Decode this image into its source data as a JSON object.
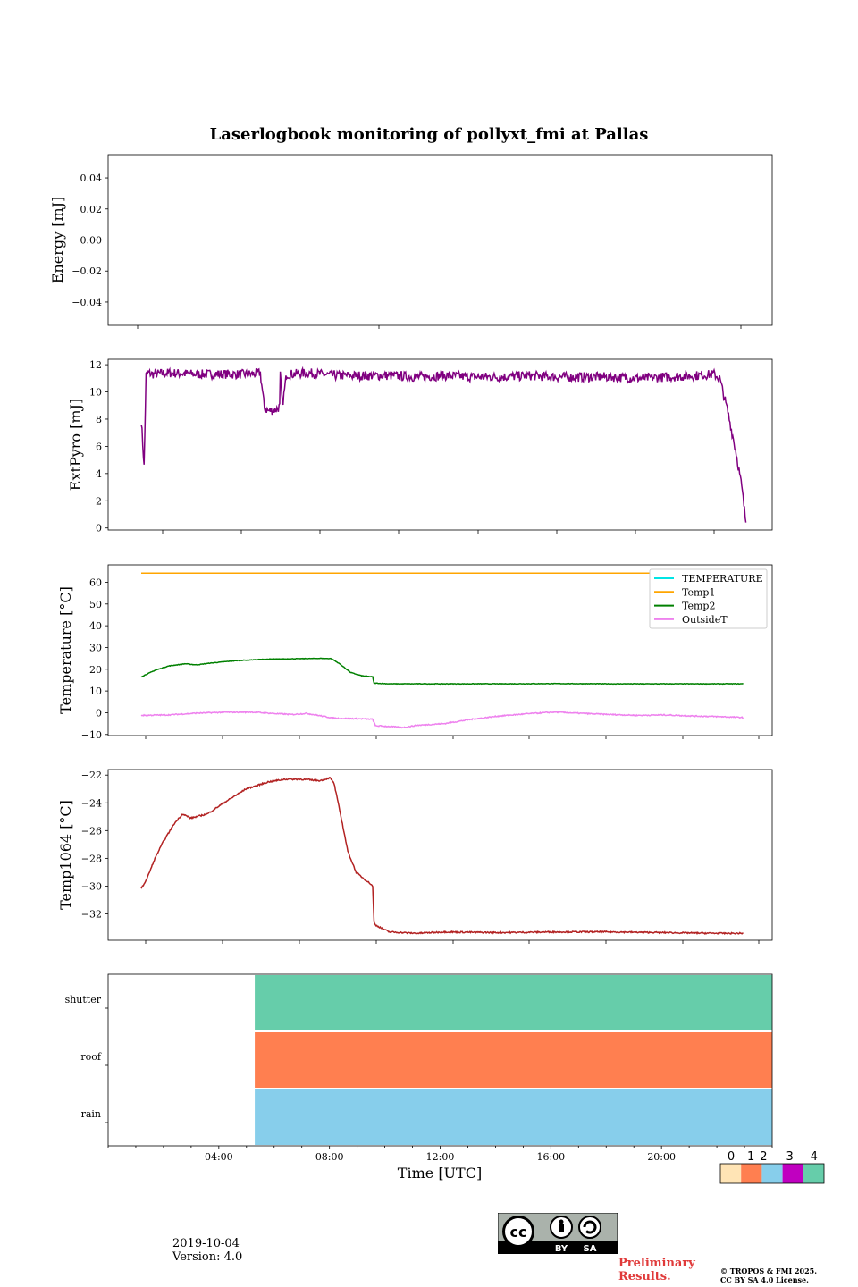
{
  "title": "Laserlogbook monitoring of pollyxt_fmi at Pallas",
  "footer": {
    "date": "2019-10-04",
    "version": "Version: 4.0",
    "preliminary_line1": "Preliminary",
    "preliminary_line2": "Results.",
    "copyright_line1": "© TROPOS & FMI 2025.",
    "copyright_line2": "CC BY SA 4.0 License.",
    "cc_labels": [
      "BY",
      "SA"
    ]
  },
  "chart_data": [
    {
      "id": "energy",
      "type": "line",
      "ylabel": "Energy [mJ]",
      "ylim": [
        -0.055,
        0.055
      ],
      "yticks": [
        0.04,
        0.02,
        0.0,
        -0.02,
        -0.04
      ],
      "ytick_labels": [
        "0.04",
        "0.02",
        "0.00",
        "−0.02",
        "−0.04"
      ],
      "series": []
    },
    {
      "id": "extpyro",
      "type": "line",
      "ylabel": "ExtPyro [mJ]",
      "ylim": [
        -0.15,
        12.4
      ],
      "yticks": [
        0,
        2,
        4,
        6,
        8,
        10,
        12
      ],
      "ytick_labels": [
        "0",
        "2",
        "4",
        "6",
        "8",
        "10",
        "12"
      ],
      "series": [
        {
          "name": "ExtPyro",
          "color": "#800080",
          "noise": 0.35,
          "x": [
            1.0,
            1.1,
            1.17,
            1.25,
            1.4,
            2,
            3,
            4,
            5,
            5.3,
            5.45,
            5.6,
            5.85,
            6.0,
            6.02,
            6.1,
            6.25,
            6.4,
            7,
            8,
            9,
            10,
            11,
            12,
            13,
            14,
            15,
            16,
            17,
            18,
            19,
            20,
            21,
            21.7,
            21.9,
            22.2,
            22.5,
            22.7,
            22.85
          ],
          "y": [
            7.9,
            4.5,
            11.2,
            11.4,
            11.3,
            11.4,
            11.3,
            11.3,
            11.3,
            11.4,
            8.8,
            8.6,
            8.7,
            8.9,
            11.2,
            9.0,
            11.3,
            11.3,
            11.4,
            11.2,
            11.2,
            11.2,
            11.1,
            11.2,
            11.1,
            11.1,
            11.2,
            11.1,
            11.1,
            11.1,
            11.0,
            11.1,
            11.2,
            11.3,
            11.0,
            8.5,
            5.5,
            3.0,
            0.4
          ]
        }
      ]
    },
    {
      "id": "temperature",
      "type": "line",
      "ylabel": "Temperature [°C]",
      "ylim": [
        -10.5,
        68
      ],
      "yticks": [
        -10,
        0,
        10,
        20,
        30,
        40,
        50,
        60
      ],
      "ytick_labels": [
        "−10",
        "0",
        "10",
        "20",
        "30",
        "40",
        "50",
        "60"
      ],
      "legend": "top-right",
      "series": [
        {
          "name": "TEMPERATURE",
          "color": "#00e5e5",
          "x": [],
          "y": []
        },
        {
          "name": "Temp1",
          "color": "#ffa500",
          "noise": 0,
          "x": [
            1.0,
            22.85
          ],
          "y": [
            64.2,
            64.2
          ]
        },
        {
          "name": "Temp2",
          "color": "#008000",
          "noise": 0.12,
          "x": [
            1.0,
            1.5,
            2.0,
            2.6,
            3.0,
            3.5,
            4.5,
            5.5,
            6.5,
            7.5,
            7.9,
            8.2,
            8.6,
            9.0,
            9.4,
            9.45,
            10,
            12,
            14,
            16,
            18,
            20,
            22.85
          ],
          "y": [
            16.5,
            19.5,
            21.5,
            22.5,
            22.0,
            22.8,
            24.0,
            24.6,
            24.8,
            25.0,
            24.9,
            22.5,
            18.5,
            17.0,
            16.5,
            13.6,
            13.3,
            13.3,
            13.3,
            13.4,
            13.3,
            13.3,
            13.3
          ]
        },
        {
          "name": "OutsideT",
          "color": "#ee82ee",
          "noise": 0.25,
          "x": [
            1.0,
            2.0,
            3.0,
            4.0,
            5.0,
            6.0,
            6.5,
            7.0,
            8.0,
            9.0,
            9.4,
            9.5,
            10.0,
            10.5,
            11.0,
            12.0,
            13.0,
            14.0,
            15.0,
            16.0,
            17.0,
            18.0,
            19.0,
            20.0,
            21.0,
            22.0,
            22.85
          ],
          "y": [
            -1.2,
            -1.0,
            -0.2,
            0.2,
            0.3,
            -0.5,
            -0.8,
            -0.3,
            -2.5,
            -2.8,
            -3.0,
            -6.0,
            -6.3,
            -6.8,
            -5.8,
            -5.0,
            -3.0,
            -1.5,
            -0.5,
            0.3,
            -0.3,
            -0.8,
            -1.2,
            -1.0,
            -1.5,
            -1.8,
            -2.2
          ]
        }
      ]
    },
    {
      "id": "temp1064",
      "type": "line",
      "ylabel": "Temp1064 [°C]",
      "ylim": [
        -33.9,
        -21.6
      ],
      "yticks": [
        -32,
        -30,
        -28,
        -26,
        -24,
        -22
      ],
      "ytick_labels": [
        "−32",
        "−30",
        "−28",
        "−26",
        "−24",
        "−22"
      ],
      "series": [
        {
          "name": "Temp1064",
          "color": "#b22222",
          "noise": 0.05,
          "x": [
            1.0,
            1.2,
            1.5,
            1.8,
            2.2,
            2.5,
            2.8,
            3.0,
            3.4,
            4.0,
            4.8,
            5.6,
            6.2,
            6.8,
            7.5,
            7.85,
            8.0,
            8.2,
            8.5,
            8.8,
            9.1,
            9.3,
            9.4,
            9.45,
            9.5,
            10,
            11,
            12,
            14,
            16,
            18,
            20,
            22,
            22.85
          ],
          "y": [
            -30.2,
            -29.5,
            -28.0,
            -26.8,
            -25.5,
            -24.8,
            -25.1,
            -25.0,
            -24.8,
            -24.0,
            -23.0,
            -22.5,
            -22.3,
            -22.3,
            -22.4,
            -22.2,
            -22.6,
            -24.5,
            -27.5,
            -29.0,
            -29.5,
            -29.8,
            -30.0,
            -32.6,
            -32.8,
            -33.3,
            -33.4,
            -33.3,
            -33.35,
            -33.3,
            -33.3,
            -33.35,
            -33.4,
            -33.4
          ]
        }
      ]
    },
    {
      "id": "status",
      "type": "heatmap",
      "xlabel": "Time [UTC]",
      "categories": [
        "rain",
        "roof",
        "shutter"
      ],
      "xticks": [
        "04:00",
        "08:00",
        "12:00",
        "16:00",
        "20:00"
      ],
      "segments": [
        {
          "row": "shutter",
          "start": 5.3,
          "end": 24,
          "level": 4
        },
        {
          "row": "roof",
          "start": 5.3,
          "end": 24,
          "level": 1
        },
        {
          "row": "rain",
          "start": 5.3,
          "end": 24,
          "level": 2
        }
      ],
      "colorbar": {
        "levels": [
          "0",
          "1",
          "2",
          "3",
          "4"
        ],
        "colors": [
          "#ffe4b5",
          "#ff7f50",
          "#87ceeb",
          "#c000c0",
          "#66cdaa"
        ]
      }
    }
  ]
}
